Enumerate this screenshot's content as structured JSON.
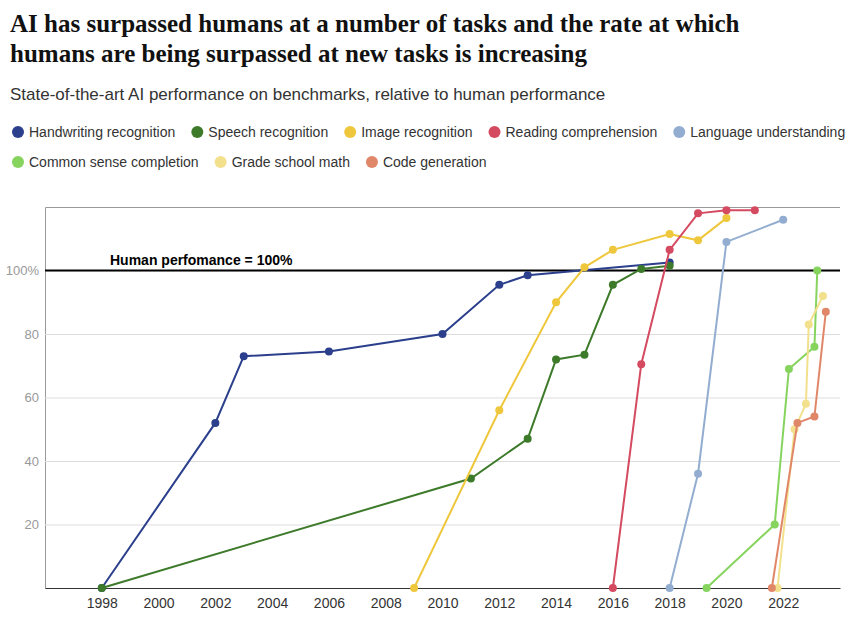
{
  "chart_data": {
    "type": "line",
    "title": "AI has surpassed humans at a number of tasks and the rate at which humans are being surpassed at new tasks is increasing",
    "subtitle": "State-of-the-art AI performance on benchmarks, relative to human performance",
    "xlim": [
      1996,
      2024
    ],
    "xticks": [
      1998,
      2000,
      2002,
      2004,
      2006,
      2008,
      2010,
      2012,
      2014,
      2016,
      2018,
      2020,
      2022
    ],
    "ylim": [
      0,
      120
    ],
    "yticks": [
      20,
      40,
      60,
      80,
      {
        "value": 100,
        "label": "100%"
      }
    ],
    "grid": true,
    "legend": "top-left",
    "marker": "circle",
    "annotations": [
      {
        "text": "Human perfomance = 100%",
        "y": 100
      }
    ],
    "series": [
      {
        "name": "Handwriting recognition",
        "color": "#2b3f8c",
        "x": [
          1998,
          2002,
          2003,
          2006,
          2010,
          2012,
          2013,
          2018
        ],
        "values": [
          0,
          52,
          73,
          74.5,
          80,
          95.5,
          98.5,
          102.5
        ]
      },
      {
        "name": "Speech recognition",
        "color": "#3d7a2a",
        "x": [
          1998,
          2011,
          2013,
          2014,
          2015,
          2016,
          2017,
          2018
        ],
        "values": [
          0,
          34.5,
          47,
          72,
          73.5,
          95.5,
          100.5,
          101.5
        ]
      },
      {
        "name": "Image recognition",
        "color": "#eec73c",
        "x": [
          2009,
          2012,
          2014,
          2015,
          2016,
          2018,
          2019,
          2020
        ],
        "values": [
          0,
          56,
          90,
          101,
          106.5,
          111.5,
          109.5,
          116.5
        ]
      },
      {
        "name": "Reading comprehension",
        "color": "#d44a60",
        "x": [
          2016,
          2017,
          2018,
          2019,
          2020,
          2021
        ],
        "values": [
          0,
          70.5,
          106.5,
          118,
          119,
          119
        ]
      },
      {
        "name": "Language understanding",
        "color": "#93add0",
        "x": [
          2018,
          2019,
          2020,
          2022
        ],
        "values": [
          0,
          36,
          109,
          116
        ]
      },
      {
        "name": "Common sense completion",
        "color": "#86d45e",
        "x": [
          2019.3,
          2021.7,
          2022.2,
          2023.1,
          2023.2
        ],
        "values": [
          0,
          20,
          69,
          76,
          100
        ]
      },
      {
        "name": "Grade school math",
        "color": "#f3e08c",
        "x": [
          2021.8,
          2022.4,
          2022.8,
          2022.9,
          2023.4
        ],
        "values": [
          0,
          50,
          58,
          83,
          92
        ]
      },
      {
        "name": "Code generation",
        "color": "#e0876a",
        "x": [
          2021.6,
          2022.5,
          2023.1,
          2023.5
        ],
        "values": [
          0,
          52,
          54,
          87
        ]
      }
    ]
  }
}
